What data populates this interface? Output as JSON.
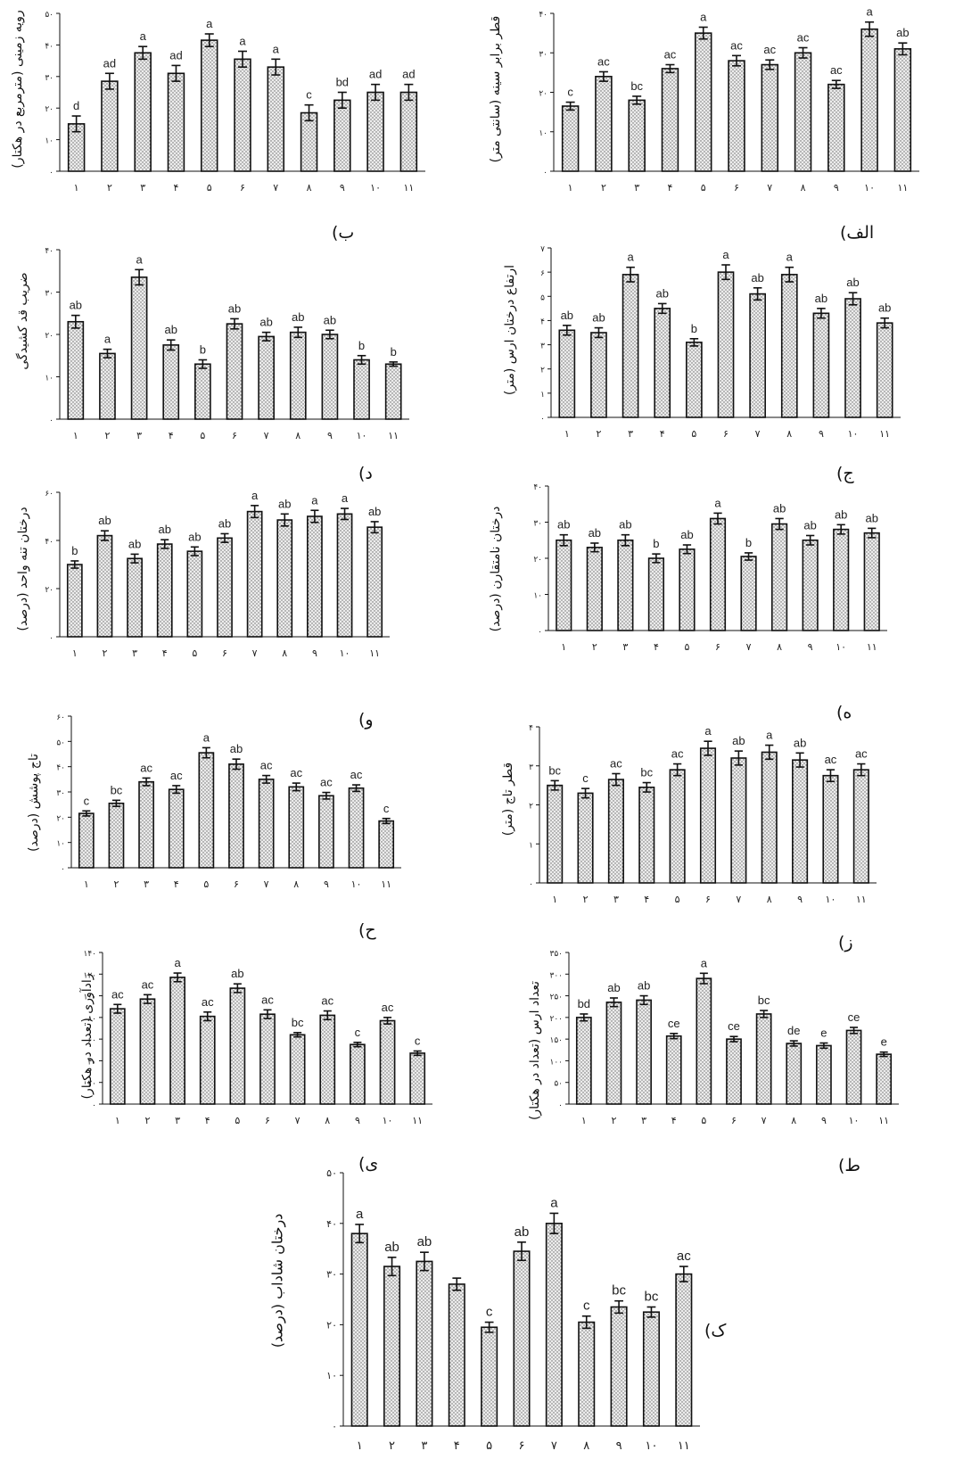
{
  "x_labels": [
    "۱",
    "۲",
    "۳",
    "۴",
    "۵",
    "۶",
    "۷",
    "۸",
    "۹",
    "۱۰",
    "۱۱"
  ],
  "colors": {
    "bar_fill": "#d9d9d9",
    "bar_stroke": "#111111",
    "axis": "#111111",
    "text": "#222222"
  },
  "chart_data": [
    {
      "id": "alef",
      "panel_label": "الف)",
      "type": "bar",
      "ylabel": "قطر برابر سینه (سانتی متر)",
      "ylim": [
        0,
        40
      ],
      "yticks": [
        "۰",
        "۱۰",
        "۲۰",
        "۳۰",
        "۴۰"
      ],
      "categories": [
        "۱",
        "۲",
        "۳",
        "۴",
        "۵",
        "۶",
        "۷",
        "۸",
        "۹",
        "۱۰",
        "۱۱"
      ],
      "values": [
        16.5,
        24,
        18,
        26,
        35,
        28,
        27,
        30,
        22,
        36,
        31
      ],
      "errors": [
        1,
        1.2,
        1,
        1,
        1.5,
        1.3,
        1.2,
        1.3,
        1,
        1.8,
        1.5
      ],
      "letters": [
        "c",
        "ac",
        "bc",
        "ac",
        "a",
        "ac",
        "ac",
        "ac",
        "ac",
        "a",
        "ab"
      ]
    },
    {
      "id": "be",
      "panel_label": "ب)",
      "type": "bar",
      "ylabel": "رویه زمینی (مترمربع در هکتار)",
      "ylim": [
        0,
        50
      ],
      "yticks": [
        "۰",
        "۱۰",
        "۲۰",
        "۳۰",
        "۴۰",
        "۵۰"
      ],
      "categories": [
        "۱",
        "۲",
        "۳",
        "۴",
        "۵",
        "۶",
        "۷",
        "۸",
        "۹",
        "۱۰",
        "۱۱"
      ],
      "values": [
        15,
        28.5,
        37.5,
        31,
        41.5,
        35.5,
        33,
        18.5,
        22.5,
        25,
        25
      ],
      "errors": [
        2.5,
        2.5,
        2,
        2.5,
        2,
        2.5,
        2.5,
        2.5,
        2.5,
        2.5,
        2.5
      ],
      "letters": [
        "d",
        "ad",
        "a",
        "ad",
        "a",
        "a",
        "a",
        "c",
        "bd",
        "ad",
        "ad"
      ]
    },
    {
      "id": "jim",
      "panel_label": "ج)",
      "type": "bar",
      "ylabel": "ارتفاع درختان ارس (متر)",
      "ylim": [
        0,
        7
      ],
      "yticks": [
        "۰",
        "۱",
        "۲",
        "۳",
        "۴",
        "۵",
        "۶",
        "۷"
      ],
      "categories": [
        "۱",
        "۲",
        "۳",
        "۴",
        "۵",
        "۶",
        "۷",
        "۸",
        "۹",
        "۱۰",
        "۱۱"
      ],
      "values": [
        3.6,
        3.5,
        5.9,
        4.5,
        3.1,
        6.0,
        5.1,
        5.9,
        4.3,
        4.9,
        3.9
      ],
      "errors": [
        0.2,
        0.2,
        0.3,
        0.2,
        0.15,
        0.3,
        0.25,
        0.3,
        0.2,
        0.25,
        0.2
      ],
      "letters": [
        "ab",
        "ab",
        "a",
        "ab",
        "b",
        "a",
        "ab",
        "a",
        "ab",
        "ab",
        "ab"
      ]
    },
    {
      "id": "dal",
      "panel_label": "د)",
      "type": "bar",
      "ylabel": "ضریب قد کشیدگی",
      "ylim": [
        0,
        40
      ],
      "yticks": [
        "۰",
        "۱۰",
        "۲۰",
        "۳۰",
        "۴۰"
      ],
      "categories": [
        "۱",
        "۲",
        "۳",
        "۴",
        "۵",
        "۶",
        "۷",
        "۸",
        "۹",
        "۱۰",
        "۱۱"
      ],
      "values": [
        23,
        15.5,
        33.5,
        17.5,
        13,
        22.5,
        19.5,
        20.5,
        20,
        14,
        13
      ],
      "errors": [
        1.5,
        1,
        1.8,
        1.2,
        1,
        1.2,
        1,
        1.2,
        1,
        1,
        0.5
      ],
      "letters": [
        "ab",
        "a",
        "a",
        "ab",
        "b",
        "ab",
        "ab",
        "ab",
        "ab",
        "b",
        "b"
      ]
    },
    {
      "id": "he",
      "panel_label": "ه)",
      "type": "bar",
      "ylabel": "درختان نامتقارن (درصد)",
      "ylim": [
        0,
        40
      ],
      "yticks": [
        "۰",
        "۱۰",
        "۲۰",
        "۳۰",
        "۴۰"
      ],
      "categories": [
        "۱",
        "۲",
        "۳",
        "۴",
        "۵",
        "۶",
        "۷",
        "۸",
        "۹",
        "۱۰",
        "۱۱"
      ],
      "values": [
        25,
        23,
        25,
        20,
        22.5,
        31,
        20.5,
        29.5,
        25,
        28,
        27
      ],
      "errors": [
        1.5,
        1.2,
        1.5,
        1.2,
        1.2,
        1.5,
        1,
        1.5,
        1.3,
        1.3,
        1.3
      ],
      "letters": [
        "ab",
        "ab",
        "ab",
        "b",
        "ab",
        "a",
        "b",
        "ab",
        "ab",
        "ab",
        "ab"
      ]
    },
    {
      "id": "vav",
      "panel_label": "و)",
      "type": "bar",
      "ylabel": "درختان تنه واحد (درصد)",
      "ylim": [
        0,
        60
      ],
      "yticks": [
        "۰",
        "۲۰",
        "۴۰",
        "۶۰"
      ],
      "categories": [
        "۱",
        "۲",
        "۳",
        "۴",
        "۵",
        "۶",
        "۷",
        "۸",
        "۹",
        "۱۰",
        "۱۱"
      ],
      "values": [
        30,
        42,
        32.5,
        38.5,
        35.5,
        41,
        52,
        48.5,
        50,
        51,
        45.5
      ],
      "errors": [
        1.5,
        2,
        1.8,
        1.8,
        1.8,
        1.8,
        2.5,
        2.5,
        2.5,
        2.3,
        2.3
      ],
      "letters": [
        "b",
        "ab",
        "ab",
        "ab",
        "ab",
        "ab",
        "a",
        "ab",
        "a",
        "a",
        "ab"
      ]
    },
    {
      "id": "ze",
      "panel_label": "ز)",
      "type": "bar",
      "ylabel": "قطر تاج (متر)",
      "ylim": [
        0,
        4
      ],
      "yticks": [
        "۰",
        "۱",
        "۲",
        "۳",
        "۴"
      ],
      "categories": [
        "۱",
        "۲",
        "۳",
        "۴",
        "۵",
        "۶",
        "۷",
        "۸",
        "۹",
        "۱۰",
        "۱۱"
      ],
      "values": [
        2.5,
        2.3,
        2.65,
        2.45,
        2.9,
        3.45,
        3.2,
        3.35,
        3.15,
        2.75,
        2.9
      ],
      "errors": [
        0.12,
        0.12,
        0.15,
        0.12,
        0.15,
        0.18,
        0.18,
        0.18,
        0.18,
        0.15,
        0.15
      ],
      "letters": [
        "bc",
        "c",
        "ac",
        "bc",
        "ac",
        "a",
        "ab",
        "a",
        "ab",
        "ac",
        "ac"
      ]
    },
    {
      "id": "he2",
      "panel_label": "ح)",
      "type": "bar",
      "ylabel": "تاج پوشش (درصد)",
      "ylim": [
        0,
        60
      ],
      "yticks": [
        "۰",
        "۱۰",
        "۲۰",
        "۳۰",
        "۴۰",
        "۵۰",
        "۶۰"
      ],
      "categories": [
        "۱",
        "۲",
        "۳",
        "۴",
        "۵",
        "۶",
        "۷",
        "۸",
        "۹",
        "۱۰",
        "۱۱"
      ],
      "values": [
        21.5,
        25.5,
        34,
        31,
        45.5,
        41,
        35,
        32,
        28.5,
        31.5,
        18.5
      ],
      "errors": [
        1,
        1.2,
        1.5,
        1.5,
        2,
        2,
        1.5,
        1.5,
        1.3,
        1.3,
        1
      ],
      "letters": [
        "c",
        "bc",
        "ac",
        "ac",
        "a",
        "ab",
        "ac",
        "ac",
        "ac",
        "ac",
        "c"
      ]
    },
    {
      "id": "ta",
      "panel_label": "ط)",
      "type": "bar",
      "ylabel": "تعداد ارس (تعداد در هکتار)",
      "ylim": [
        0,
        350
      ],
      "yticks": [
        "۰",
        "۵۰",
        "۱۰۰",
        "۱۵۰",
        "۲۰۰",
        "۲۵۰",
        "۳۰۰",
        "۳۵۰"
      ],
      "categories": [
        "۱",
        "۲",
        "۳",
        "۴",
        "۵",
        "۶",
        "۷",
        "۸",
        "۹",
        "۱۰",
        "۱۱"
      ],
      "values": [
        200,
        235,
        240,
        157,
        290,
        150,
        208,
        140,
        135,
        170,
        115
      ],
      "errors": [
        8,
        10,
        10,
        6,
        12,
        6,
        8,
        6,
        6,
        7,
        5
      ],
      "letters": [
        "bd",
        "ab",
        "ab",
        "ce",
        "a",
        "ce",
        "bc",
        "de",
        "e",
        "ce",
        "e"
      ]
    },
    {
      "id": "ye",
      "panel_label": "ی)",
      "type": "bar",
      "ylabel": "زادآوری (تعداد در هکتار)",
      "ylim": [
        0,
        140
      ],
      "yticks": [
        "۰",
        "۲۰",
        "۴۰",
        "۶۰",
        "۸۰",
        "۱۰۰",
        "۱۲۰",
        "۱۴۰"
      ],
      "categories": [
        "۱",
        "۲",
        "۳",
        "۴",
        "۵",
        "۶",
        "۷",
        "۸",
        "۹",
        "۱۰",
        "۱۱"
      ],
      "values": [
        88,
        97,
        117,
        81,
        107,
        83,
        64,
        82,
        55,
        77,
        47
      ],
      "errors": [
        4,
        4,
        4,
        4,
        4,
        4,
        2,
        4,
        2,
        3,
        2
      ],
      "letters": [
        "ac",
        "ac",
        "a",
        "ac",
        "ab",
        "ac",
        "bc",
        "ac",
        "c",
        "ac",
        "c"
      ]
    },
    {
      "id": "kaf",
      "panel_label": "ک)",
      "type": "bar",
      "ylabel": "درختان شاداب (درصد)",
      "ylim": [
        0,
        50
      ],
      "yticks": [
        "۰",
        "۱۰",
        "۲۰",
        "۳۰",
        "۴۰",
        "۵۰"
      ],
      "categories": [
        "۱",
        "۲",
        "۳",
        "۴",
        "۵",
        "۶",
        "۷",
        "۸",
        "۹",
        "۱۰",
        "۱۱"
      ],
      "values": [
        38,
        31.5,
        32.5,
        28,
        19.5,
        34.5,
        40,
        20.5,
        23.5,
        22.5,
        30
      ],
      "errors": [
        1.8,
        1.8,
        1.8,
        1.2,
        1,
        1.8,
        2,
        1.2,
        1.2,
        1,
        1.5
      ],
      "letters": [
        "a",
        "ab",
        "ab",
        "",
        "c",
        "ab",
        "a",
        "c",
        "bc",
        "bc",
        "ac"
      ]
    }
  ]
}
